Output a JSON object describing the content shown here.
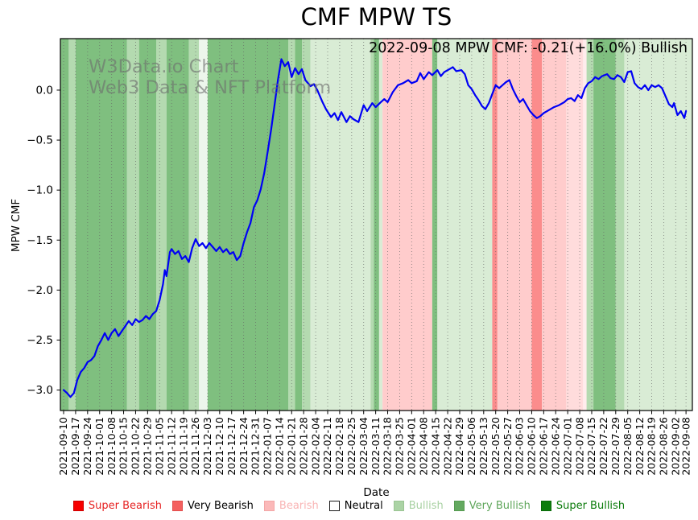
{
  "title": "CMF MPW TS",
  "annotation": "2022-09-08 MPW CMF: -0.21(+16.0%) Bullish",
  "watermark": {
    "line1": "W3Data.io Chart",
    "line2": "Web3 Data & NFT Platform"
  },
  "axes": {
    "x_label": "Date",
    "y_label": "MPW CMF"
  },
  "legend": {
    "items": [
      {
        "label": "Super Bearish",
        "swatch": "#f70000",
        "text_color": "#e62222",
        "swatch_border": "#cc0000"
      },
      {
        "label": "Very Bearish",
        "swatch": "#f4605f",
        "text_color": "#ef5ب350",
        "swatch_border": "#e24d4d"
      },
      {
        "label": "Bearish",
        "swatch": "#fbb9b9",
        "text_color": "#f9b4b4",
        "swatch_border": "#f3a6a6"
      },
      {
        "label": "Neutral",
        "swatch": "#ffffff",
        "text_color": "#000000",
        "swatch_border": "#1a1a1a"
      },
      {
        "label": "Bullish",
        "swatch": "#abd3a5",
        "text_color": "#a8d1a2",
        "swatch_border": "#9ac493"
      },
      {
        "label": "Very Bullish",
        "swatch": "#64a960",
        "text_color": "#5fa65b",
        "swatch_border": "#559a50"
      },
      {
        "label": "Super Bullish",
        "swatch": "#0d7d0d",
        "text_color": "#0b7b0b",
        "swatch_border": "#0a6a0a"
      }
    ]
  },
  "chart_data": {
    "type": "line",
    "title": "CMF MPW TS",
    "xlabel": "Date",
    "ylabel": "MPW CMF",
    "x_start_date": "2021-09-10",
    "x_end_date": "2022-09-08",
    "ylim": [
      -3.205,
      0.515
    ],
    "grid": "vertical-dotted-weekly",
    "line_color": "#0000f5",
    "gridline_color": "#666666",
    "y_ticks": {
      "values": [
        0.0,
        -0.5,
        -1.0,
        -1.5,
        -2.0,
        -2.5,
        -3.0
      ],
      "labels": [
        "0.0",
        "−0.5",
        "−1.0",
        "−1.5",
        "−2.0",
        "−2.5",
        "−3.0"
      ]
    },
    "x_tick_labels": [
      "2021-09-10",
      "2021-09-17",
      "2021-09-24",
      "2021-10-01",
      "2021-10-08",
      "2021-10-15",
      "2021-10-22",
      "2021-10-29",
      "2021-11-05",
      "2021-11-12",
      "2021-11-19",
      "2021-11-26",
      "2021-12-03",
      "2021-12-10",
      "2021-12-17",
      "2021-12-24",
      "2021-12-31",
      "2022-01-07",
      "2022-01-14",
      "2022-01-21",
      "2022-01-28",
      "2022-02-04",
      "2022-02-11",
      "2022-02-18",
      "2022-02-25",
      "2022-03-04",
      "2022-03-11",
      "2022-03-18",
      "2022-03-25",
      "2022-04-01",
      "2022-04-08",
      "2022-04-15",
      "2022-04-22",
      "2022-04-29",
      "2022-05-06",
      "2022-05-13",
      "2022-05-20",
      "2022-05-27",
      "2022-06-03",
      "2022-06-10",
      "2022-06-17",
      "2022-06-24",
      "2022-07-01",
      "2022-07-08",
      "2022-07-15",
      "2022-07-22",
      "2022-07-29",
      "2022-08-05",
      "2022-08-12",
      "2022-08-19",
      "2022-08-26",
      "2022-09-02",
      "2022-09-08"
    ],
    "band_colors": {
      "very_bullish": "#7fbf7f",
      "bullish_med": "#b4dab0",
      "bullish": "#d9ecd5",
      "neutral_light": "#edf6ec",
      "bearish": "#ffcccc",
      "bearish_light": "#ffdcdc",
      "bearish_lighter": "#ffecec",
      "very_bearish": "#fb8c8c"
    },
    "background_bands": [
      [
        "2021-09-08",
        "2021-09-13",
        "very_bullish"
      ],
      [
        "2021-09-13",
        "2021-09-17",
        "bullish_med"
      ],
      [
        "2021-09-17",
        "2021-10-17",
        "very_bullish"
      ],
      [
        "2021-10-17",
        "2021-10-24",
        "bullish_med"
      ],
      [
        "2021-10-24",
        "2021-11-03",
        "very_bullish"
      ],
      [
        "2021-11-03",
        "2021-11-09",
        "bullish_med"
      ],
      [
        "2021-11-09",
        "2021-11-22",
        "very_bullish"
      ],
      [
        "2021-11-22",
        "2021-11-28",
        "bullish_med"
      ],
      [
        "2021-11-28",
        "2021-12-03",
        "neutral_light"
      ],
      [
        "2021-12-03",
        "2022-01-19",
        "very_bullish"
      ],
      [
        "2022-01-19",
        "2022-01-23",
        "bullish_med"
      ],
      [
        "2022-01-23",
        "2022-01-27",
        "very_bullish"
      ],
      [
        "2022-01-27",
        "2022-02-01",
        "bullish_med"
      ],
      [
        "2022-02-01",
        "2022-03-08",
        "bullish"
      ],
      [
        "2022-03-08",
        "2022-03-10",
        "bullish_med"
      ],
      [
        "2022-03-10",
        "2022-03-13",
        "very_bullish"
      ],
      [
        "2022-03-13",
        "2022-03-15",
        "bullish"
      ],
      [
        "2022-03-15",
        "2022-04-13",
        "bearish"
      ],
      [
        "2022-04-13",
        "2022-04-16",
        "very_bullish"
      ],
      [
        "2022-04-16",
        "2022-05-18",
        "bullish"
      ],
      [
        "2022-05-18",
        "2022-05-21",
        "very_bearish"
      ],
      [
        "2022-05-21",
        "2022-06-10",
        "bearish"
      ],
      [
        "2022-06-10",
        "2022-06-16",
        "very_bearish"
      ],
      [
        "2022-06-16",
        "2022-06-30",
        "bearish"
      ],
      [
        "2022-06-30",
        "2022-07-10",
        "bearish_light"
      ],
      [
        "2022-07-10",
        "2022-07-12",
        "bearish_lighter"
      ],
      [
        "2022-07-12",
        "2022-07-16",
        "bullish_med"
      ],
      [
        "2022-07-16",
        "2022-07-29",
        "very_bullish"
      ],
      [
        "2022-07-29",
        "2022-08-03",
        "bullish_med"
      ],
      [
        "2022-08-03",
        "2022-09-12",
        "bullish"
      ]
    ],
    "series": [
      {
        "name": "MPW CMF",
        "points": [
          [
            "2021-09-10",
            -3.0
          ],
          [
            "2021-09-12",
            -3.03
          ],
          [
            "2021-09-14",
            -3.07
          ],
          [
            "2021-09-16",
            -3.03
          ],
          [
            "2021-09-18",
            -2.9
          ],
          [
            "2021-09-20",
            -2.82
          ],
          [
            "2021-09-22",
            -2.78
          ],
          [
            "2021-09-24",
            -2.72
          ],
          [
            "2021-09-26",
            -2.7
          ],
          [
            "2021-09-28",
            -2.66
          ],
          [
            "2021-09-30",
            -2.56
          ],
          [
            "2021-10-02",
            -2.5
          ],
          [
            "2021-10-04",
            -2.43
          ],
          [
            "2021-10-06",
            -2.5
          ],
          [
            "2021-10-08",
            -2.43
          ],
          [
            "2021-10-10",
            -2.39
          ],
          [
            "2021-10-12",
            -2.46
          ],
          [
            "2021-10-14",
            -2.41
          ],
          [
            "2021-10-16",
            -2.36
          ],
          [
            "2021-10-18",
            -2.31
          ],
          [
            "2021-10-20",
            -2.35
          ],
          [
            "2021-10-22",
            -2.29
          ],
          [
            "2021-10-24",
            -2.32
          ],
          [
            "2021-10-26",
            -2.3
          ],
          [
            "2021-10-28",
            -2.26
          ],
          [
            "2021-10-30",
            -2.29
          ],
          [
            "2021-11-01",
            -2.24
          ],
          [
            "2021-11-03",
            -2.21
          ],
          [
            "2021-11-05",
            -2.1
          ],
          [
            "2021-11-07",
            -1.94
          ],
          [
            "2021-11-08",
            -1.8
          ],
          [
            "2021-11-09",
            -1.86
          ],
          [
            "2021-11-11",
            -1.62
          ],
          [
            "2021-11-12",
            -1.59
          ],
          [
            "2021-11-14",
            -1.64
          ],
          [
            "2021-11-16",
            -1.61
          ],
          [
            "2021-11-18",
            -1.69
          ],
          [
            "2021-11-20",
            -1.66
          ],
          [
            "2021-11-22",
            -1.72
          ],
          [
            "2021-11-24",
            -1.58
          ],
          [
            "2021-11-26",
            -1.49
          ],
          [
            "2021-11-28",
            -1.56
          ],
          [
            "2021-11-30",
            -1.53
          ],
          [
            "2021-12-02",
            -1.58
          ],
          [
            "2021-12-04",
            -1.53
          ],
          [
            "2021-12-06",
            -1.57
          ],
          [
            "2021-12-08",
            -1.61
          ],
          [
            "2021-12-10",
            -1.57
          ],
          [
            "2021-12-12",
            -1.62
          ],
          [
            "2021-12-14",
            -1.59
          ],
          [
            "2021-12-16",
            -1.64
          ],
          [
            "2021-12-18",
            -1.62
          ],
          [
            "2021-12-20",
            -1.7
          ],
          [
            "2021-12-22",
            -1.66
          ],
          [
            "2021-12-24",
            -1.53
          ],
          [
            "2021-12-26",
            -1.42
          ],
          [
            "2021-12-28",
            -1.33
          ],
          [
            "2021-12-30",
            -1.17
          ],
          [
            "2022-01-01",
            -1.1
          ],
          [
            "2022-01-03",
            -0.99
          ],
          [
            "2022-01-05",
            -0.83
          ],
          [
            "2022-01-07",
            -0.62
          ],
          [
            "2022-01-09",
            -0.4
          ],
          [
            "2022-01-11",
            -0.15
          ],
          [
            "2022-01-13",
            0.1
          ],
          [
            "2022-01-15",
            0.31
          ],
          [
            "2022-01-17",
            0.24
          ],
          [
            "2022-01-19",
            0.28
          ],
          [
            "2022-01-21",
            0.13
          ],
          [
            "2022-01-23",
            0.22
          ],
          [
            "2022-01-25",
            0.16
          ],
          [
            "2022-01-27",
            0.21
          ],
          [
            "2022-01-29",
            0.1
          ],
          [
            "2022-02-01",
            0.04
          ],
          [
            "2022-02-03",
            0.06
          ],
          [
            "2022-02-05",
            0.0
          ],
          [
            "2022-02-08",
            -0.12
          ],
          [
            "2022-02-10",
            -0.19
          ],
          [
            "2022-02-13",
            -0.27
          ],
          [
            "2022-02-15",
            -0.23
          ],
          [
            "2022-02-17",
            -0.3
          ],
          [
            "2022-02-19",
            -0.22
          ],
          [
            "2022-02-22",
            -0.32
          ],
          [
            "2022-02-24",
            -0.26
          ],
          [
            "2022-02-26",
            -0.29
          ],
          [
            "2022-03-01",
            -0.32
          ],
          [
            "2022-03-04",
            -0.15
          ],
          [
            "2022-03-06",
            -0.21
          ],
          [
            "2022-03-09",
            -0.13
          ],
          [
            "2022-03-11",
            -0.17
          ],
          [
            "2022-03-14",
            -0.12
          ],
          [
            "2022-03-16",
            -0.09
          ],
          [
            "2022-03-18",
            -0.12
          ],
          [
            "2022-03-21",
            -0.02
          ],
          [
            "2022-03-24",
            0.05
          ],
          [
            "2022-03-27",
            0.07
          ],
          [
            "2022-03-30",
            0.1
          ],
          [
            "2022-04-01",
            0.07
          ],
          [
            "2022-04-04",
            0.09
          ],
          [
            "2022-04-06",
            0.17
          ],
          [
            "2022-04-08",
            0.11
          ],
          [
            "2022-04-11",
            0.18
          ],
          [
            "2022-04-13",
            0.15
          ],
          [
            "2022-04-16",
            0.2
          ],
          [
            "2022-04-18",
            0.14
          ],
          [
            "2022-04-20",
            0.18
          ],
          [
            "2022-04-23",
            0.21
          ],
          [
            "2022-04-25",
            0.23
          ],
          [
            "2022-04-27",
            0.19
          ],
          [
            "2022-04-30",
            0.2
          ],
          [
            "2022-05-02",
            0.16
          ],
          [
            "2022-05-04",
            0.05
          ],
          [
            "2022-05-06",
            0.01
          ],
          [
            "2022-05-08",
            -0.05
          ],
          [
            "2022-05-10",
            -0.1
          ],
          [
            "2022-05-12",
            -0.16
          ],
          [
            "2022-05-14",
            -0.19
          ],
          [
            "2022-05-16",
            -0.13
          ],
          [
            "2022-05-18",
            -0.04
          ],
          [
            "2022-05-20",
            0.05
          ],
          [
            "2022-05-22",
            0.02
          ],
          [
            "2022-05-24",
            0.05
          ],
          [
            "2022-05-26",
            0.08
          ],
          [
            "2022-05-28",
            0.1
          ],
          [
            "2022-05-30",
            0.01
          ],
          [
            "2022-06-01",
            -0.06
          ],
          [
            "2022-06-03",
            -0.12
          ],
          [
            "2022-06-05",
            -0.09
          ],
          [
            "2022-06-07",
            -0.15
          ],
          [
            "2022-06-09",
            -0.21
          ],
          [
            "2022-06-11",
            -0.25
          ],
          [
            "2022-06-13",
            -0.28
          ],
          [
            "2022-06-15",
            -0.26
          ],
          [
            "2022-06-17",
            -0.23
          ],
          [
            "2022-06-20",
            -0.2
          ],
          [
            "2022-06-23",
            -0.17
          ],
          [
            "2022-06-26",
            -0.15
          ],
          [
            "2022-06-29",
            -0.12
          ],
          [
            "2022-07-01",
            -0.09
          ],
          [
            "2022-07-03",
            -0.08
          ],
          [
            "2022-07-05",
            -0.11
          ],
          [
            "2022-07-07",
            -0.05
          ],
          [
            "2022-07-09",
            -0.08
          ],
          [
            "2022-07-11",
            0.02
          ],
          [
            "2022-07-13",
            0.07
          ],
          [
            "2022-07-15",
            0.09
          ],
          [
            "2022-07-17",
            0.13
          ],
          [
            "2022-07-19",
            0.11
          ],
          [
            "2022-07-21",
            0.14
          ],
          [
            "2022-07-24",
            0.16
          ],
          [
            "2022-07-26",
            0.12
          ],
          [
            "2022-07-28",
            0.11
          ],
          [
            "2022-07-30",
            0.15
          ],
          [
            "2022-08-01",
            0.13
          ],
          [
            "2022-08-03",
            0.08
          ],
          [
            "2022-08-05",
            0.18
          ],
          [
            "2022-08-07",
            0.19
          ],
          [
            "2022-08-09",
            0.07
          ],
          [
            "2022-08-11",
            0.03
          ],
          [
            "2022-08-13",
            0.01
          ],
          [
            "2022-08-15",
            0.05
          ],
          [
            "2022-08-17",
            0.0
          ],
          [
            "2022-08-19",
            0.05
          ],
          [
            "2022-08-21",
            0.03
          ],
          [
            "2022-08-23",
            0.05
          ],
          [
            "2022-08-25",
            0.02
          ],
          [
            "2022-08-27",
            -0.06
          ],
          [
            "2022-08-29",
            -0.14
          ],
          [
            "2022-08-31",
            -0.17
          ],
          [
            "2022-09-01",
            -0.13
          ],
          [
            "2022-09-03",
            -0.25
          ],
          [
            "2022-09-05",
            -0.21
          ],
          [
            "2022-09-07",
            -0.28
          ],
          [
            "2022-09-08",
            -0.21
          ]
        ]
      }
    ]
  }
}
